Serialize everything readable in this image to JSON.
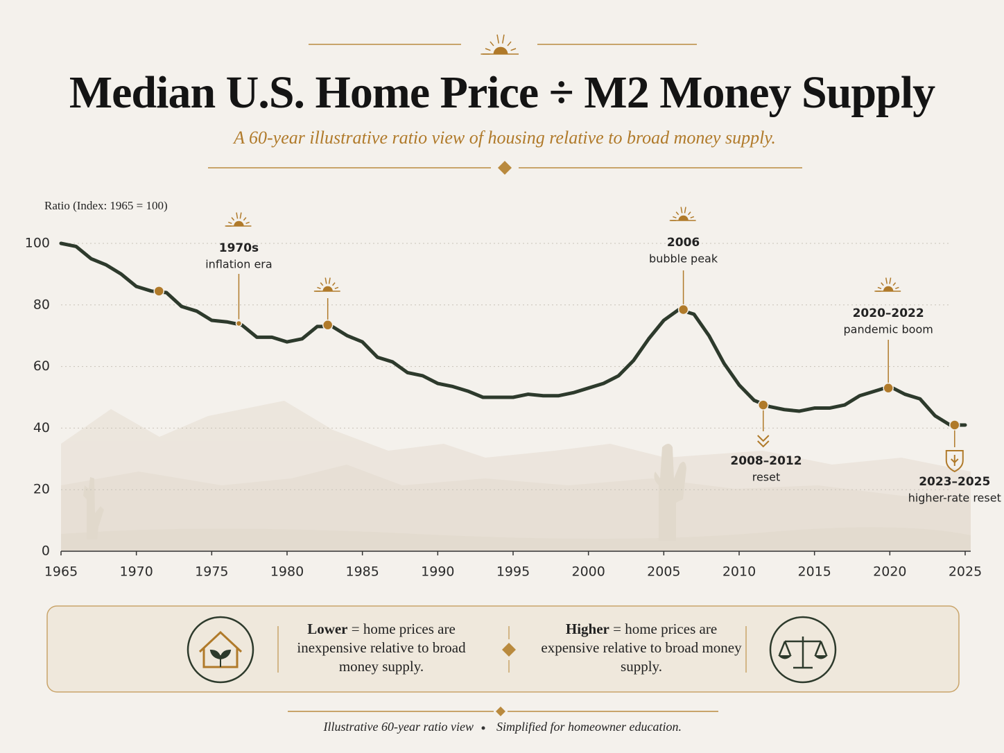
{
  "chart_data": {
    "type": "line",
    "title": "Median U.S. Home Price ÷ M2 Money Supply",
    "subtitle": "A 60-year illustrative ratio view of housing relative to broad money supply.",
    "y_label": "Ratio (Index: 1965 = 100)",
    "color": "#2d3a2c",
    "x": [
      1965,
      1966,
      1967,
      1968,
      1969,
      1970,
      1971,
      1972,
      1973,
      1974,
      1975,
      1976,
      1977,
      1978,
      1979,
      1980,
      1981,
      1982,
      1983,
      1984,
      1985,
      1986,
      1987,
      1988,
      1989,
      1990,
      1991,
      1992,
      1993,
      1994,
      1995,
      1996,
      1997,
      1998,
      1999,
      2000,
      2001,
      2002,
      2003,
      2004,
      2005,
      2006,
      2007,
      2008,
      2009,
      2010,
      2011,
      2012,
      2013,
      2014,
      2015,
      2016,
      2017,
      2018,
      2019,
      2020,
      2021,
      2022,
      2023,
      2024,
      2025
    ],
    "values": [
      100,
      99,
      95,
      93,
      90,
      86,
      84.5,
      84,
      79.5,
      78,
      75,
      74.5,
      73.5,
      69.5,
      69.5,
      68,
      69,
      73,
      73,
      70,
      68,
      63,
      61.5,
      58,
      57,
      54.5,
      53.5,
      52,
      50,
      50,
      50,
      51,
      50.5,
      50.5,
      51.5,
      53,
      54.5,
      57,
      62,
      69,
      75,
      78.5,
      77,
      70,
      61,
      54,
      49,
      47,
      46,
      45.5,
      46.5,
      46.5,
      47.5,
      50.5,
      52,
      53.5,
      51,
      49.5,
      44,
      41,
      41
    ],
    "xlim": [
      1965,
      2025
    ],
    "ylim": [
      0,
      100
    ],
    "xticks": [
      1965,
      1970,
      1975,
      1980,
      1985,
      1990,
      1995,
      2000,
      2005,
      2010,
      2015,
      2020,
      2025
    ],
    "yticks": [
      0,
      20,
      40,
      60,
      80,
      100
    ],
    "grid": true,
    "markers": [
      {
        "x": 1971.5,
        "y": 84.5
      },
      {
        "x": 1982.7,
        "y": 73.5
      }
    ],
    "annotations": [
      {
        "x": 1976.8,
        "y": 74,
        "title": "1970s",
        "text": "inflation era"
      },
      {
        "x": 2006.3,
        "y": 78.5,
        "title": "2006",
        "text": "bubble peak"
      },
      {
        "x": 2011.6,
        "y": 47.5,
        "title": "2008–2012",
        "text": "reset"
      },
      {
        "x": 2019.9,
        "y": 53,
        "title": "2020–2022",
        "text": "pandemic boom"
      },
      {
        "x": 2024.3,
        "y": 41,
        "title": "2023–2025",
        "text": "higher-rate reset"
      }
    ],
    "legend_notes": {
      "lower": {
        "term": "Lower",
        "text": "= home prices are inexpensive relative to broad money supply."
      },
      "higher": {
        "term": "Higher",
        "text": "= home prices are expensive relative to broad money supply."
      }
    },
    "footer": [
      "Illustrative 60-year ratio view",
      "Simplified for homeowner education."
    ]
  }
}
